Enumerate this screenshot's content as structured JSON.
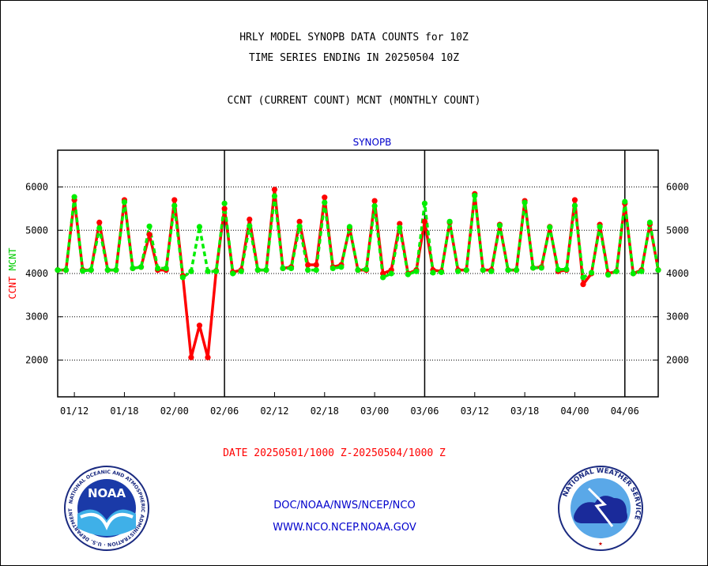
{
  "header": {
    "title1": "HRLY MODEL SYNOPB DATA COUNTS for 10Z",
    "title2": "TIME SERIES ENDING IN 20250504 10Z",
    "title3": "CCNT (CURRENT COUNT) MCNT (MONTHLY COUNT)"
  },
  "footer": {
    "date_range": "DATE 20250501/1000 Z-20250504/1000 Z",
    "org": "DOC/NOAA/NWS/NCEP/NCO",
    "url": "WWW.NCO.NCEP.NOAA.GOV"
  },
  "logos": {
    "noaa_text": "NOAA",
    "noaa_ring": "NATIONAL OCEANIC AND ATMOSPHERIC ADMINISTRATION · U.S. DEPARTMENT OF COMMERCE",
    "nws_ring": "NATIONAL WEATHER SERVICE"
  },
  "colors": {
    "ccnt": "#ff0000",
    "mcnt": "#00ee00",
    "title": "#0000cc",
    "ylabel_ccnt": "#ff0000",
    "ylabel_mcnt": "#00cc00"
  },
  "chart_data": {
    "type": "line",
    "title": "SYNOPB",
    "ylabel_parts": [
      "CCNT",
      "MCNT"
    ],
    "ylim": [
      1150,
      6850
    ],
    "yticks": [
      2000,
      3000,
      4000,
      5000,
      6000
    ],
    "x_range": [
      0,
      72
    ],
    "xticks": [
      {
        "x": 2,
        "label": "01/12"
      },
      {
        "x": 8,
        "label": "01/18"
      },
      {
        "x": 14,
        "label": "02/00"
      },
      {
        "x": 20,
        "label": "02/06"
      },
      {
        "x": 26,
        "label": "02/12"
      },
      {
        "x": 32,
        "label": "02/18"
      },
      {
        "x": 38,
        "label": "03/00"
      },
      {
        "x": 44,
        "label": "03/06"
      },
      {
        "x": 50,
        "label": "03/12"
      },
      {
        "x": 56,
        "label": "03/18"
      },
      {
        "x": 62,
        "label": "04/00"
      },
      {
        "x": 68,
        "label": "04/06"
      }
    ],
    "day_boundaries": [
      20,
      44,
      68
    ],
    "grid": true,
    "series": [
      {
        "name": "CCNT",
        "style": "solid",
        "values": [
          4080,
          4080,
          5700,
          4080,
          4080,
          5180,
          4080,
          4080,
          5700,
          4120,
          4150,
          4900,
          4080,
          4080,
          5700,
          3950,
          2060,
          2800,
          2060,
          4060,
          5500,
          4030,
          4080,
          5250,
          4080,
          4080,
          5940,
          4120,
          4150,
          5200,
          4200,
          4200,
          5760,
          4150,
          4200,
          5050,
          4080,
          4080,
          5680,
          4000,
          4080,
          5150,
          4000,
          4080,
          5200,
          4080,
          4050,
          5180,
          4080,
          4080,
          5840,
          4080,
          4080,
          5130,
          4080,
          4080,
          5680,
          4130,
          4150,
          5080,
          4050,
          4080,
          5700,
          3750,
          4000,
          5130,
          4000,
          4050,
          5620,
          4000,
          4080,
          5140,
          4080
        ]
      },
      {
        "name": "MCNT",
        "style": "dashed",
        "values": [
          4080,
          4080,
          5770,
          4060,
          4080,
          5050,
          4080,
          4080,
          5650,
          4120,
          4150,
          5090,
          4120,
          4120,
          5570,
          3910,
          4050,
          5080,
          4050,
          4050,
          5620,
          4000,
          4050,
          5100,
          4080,
          4080,
          5790,
          4120,
          4120,
          5090,
          4080,
          4080,
          5640,
          4120,
          4150,
          5080,
          4080,
          4100,
          5560,
          3910,
          4000,
          5060,
          3980,
          4050,
          5620,
          4020,
          4030,
          5200,
          4050,
          4080,
          5800,
          4080,
          4050,
          5110,
          4080,
          4080,
          5640,
          4130,
          4130,
          5070,
          4090,
          4100,
          5570,
          3910,
          4020,
          5080,
          3970,
          4050,
          5660,
          4000,
          4050,
          5180,
          4080
        ]
      }
    ]
  }
}
